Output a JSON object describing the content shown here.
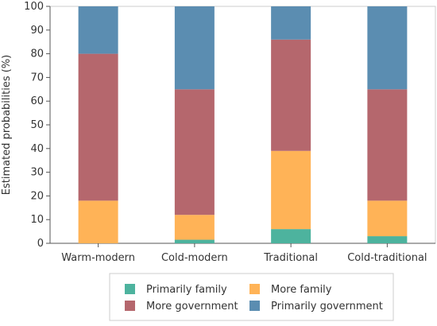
{
  "chart_data": {
    "type": "bar",
    "stacked": true,
    "title": "",
    "xlabel": "",
    "ylabel": "Estimated probabilities (%)",
    "ylim": [
      0,
      100
    ],
    "yticks": [
      0,
      10,
      20,
      30,
      40,
      50,
      60,
      70,
      80,
      90,
      100
    ],
    "grid": false,
    "legend_position": "bottom",
    "categories": [
      "Warm-modern",
      "Cold-modern",
      "Traditional",
      "Cold-traditional"
    ],
    "series": [
      {
        "name": "Primarily family",
        "color": "#4db39e",
        "values": [
          0,
          1.5,
          6,
          3
        ]
      },
      {
        "name": "More family",
        "color": "#ffb357",
        "values": [
          18,
          10.5,
          33,
          15
        ]
      },
      {
        "name": "More government",
        "color": "#b5676d",
        "values": [
          62,
          53,
          47,
          47
        ]
      },
      {
        "name": "Primarily government",
        "color": "#5b8db1",
        "values": [
          20,
          35,
          14,
          35
        ]
      }
    ],
    "legend_order": [
      0,
      2,
      1,
      3
    ]
  }
}
